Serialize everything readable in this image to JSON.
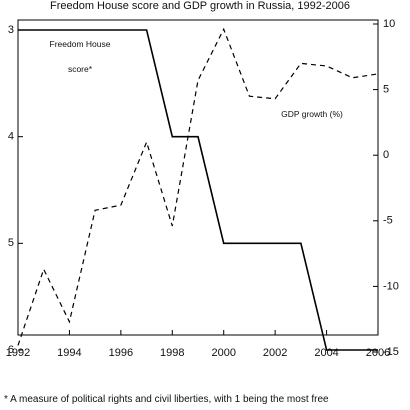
{
  "chart_data": {
    "type": "line",
    "title": "Freedom House score and GDP growth in Russia, 1992-2006",
    "footnote": "* A measure of political rights and civil liberties, with 1 being the most free",
    "x": [
      1992,
      1993,
      1994,
      1995,
      1996,
      1997,
      1998,
      1999,
      2000,
      2001,
      2002,
      2003,
      2004,
      2005,
      2006
    ],
    "xlim": [
      1992,
      2006
    ],
    "xticks": [
      "1992",
      "1994",
      "1996",
      "1998",
      "2000",
      "2002",
      "2004",
      "2006"
    ],
    "left_axis": {
      "ylim": [
        3,
        6
      ],
      "ticks": [
        "3",
        "4",
        "5",
        "6"
      ],
      "inverted": true
    },
    "right_axis": {
      "ylim": [
        -15,
        10
      ],
      "ticks": [
        "10",
        "5",
        "0",
        "-5",
        "-10",
        "-15"
      ]
    },
    "series": [
      {
        "name": "Freedom House score*",
        "label_lines": [
          "Freedom House",
          "score*"
        ],
        "axis": "left",
        "style": "solid",
        "steps": [
          [
            1992,
            3
          ],
          [
            1997,
            3
          ],
          [
            1998,
            4
          ],
          [
            1999,
            4
          ],
          [
            2000,
            5
          ],
          [
            2003,
            5
          ],
          [
            2004,
            6
          ],
          [
            2006,
            6
          ]
        ]
      },
      {
        "name": "GDP growth (%)",
        "label_lines": [
          "GDP growth (%)"
        ],
        "axis": "right",
        "style": "dashed",
        "values": [
          -14.5,
          -8.7,
          -12.7,
          -4.2,
          -3.8,
          1.0,
          -5.4,
          5.7,
          9.6,
          4.5,
          4.3,
          7.0,
          6.8,
          5.9,
          6.2
        ]
      }
    ]
  }
}
